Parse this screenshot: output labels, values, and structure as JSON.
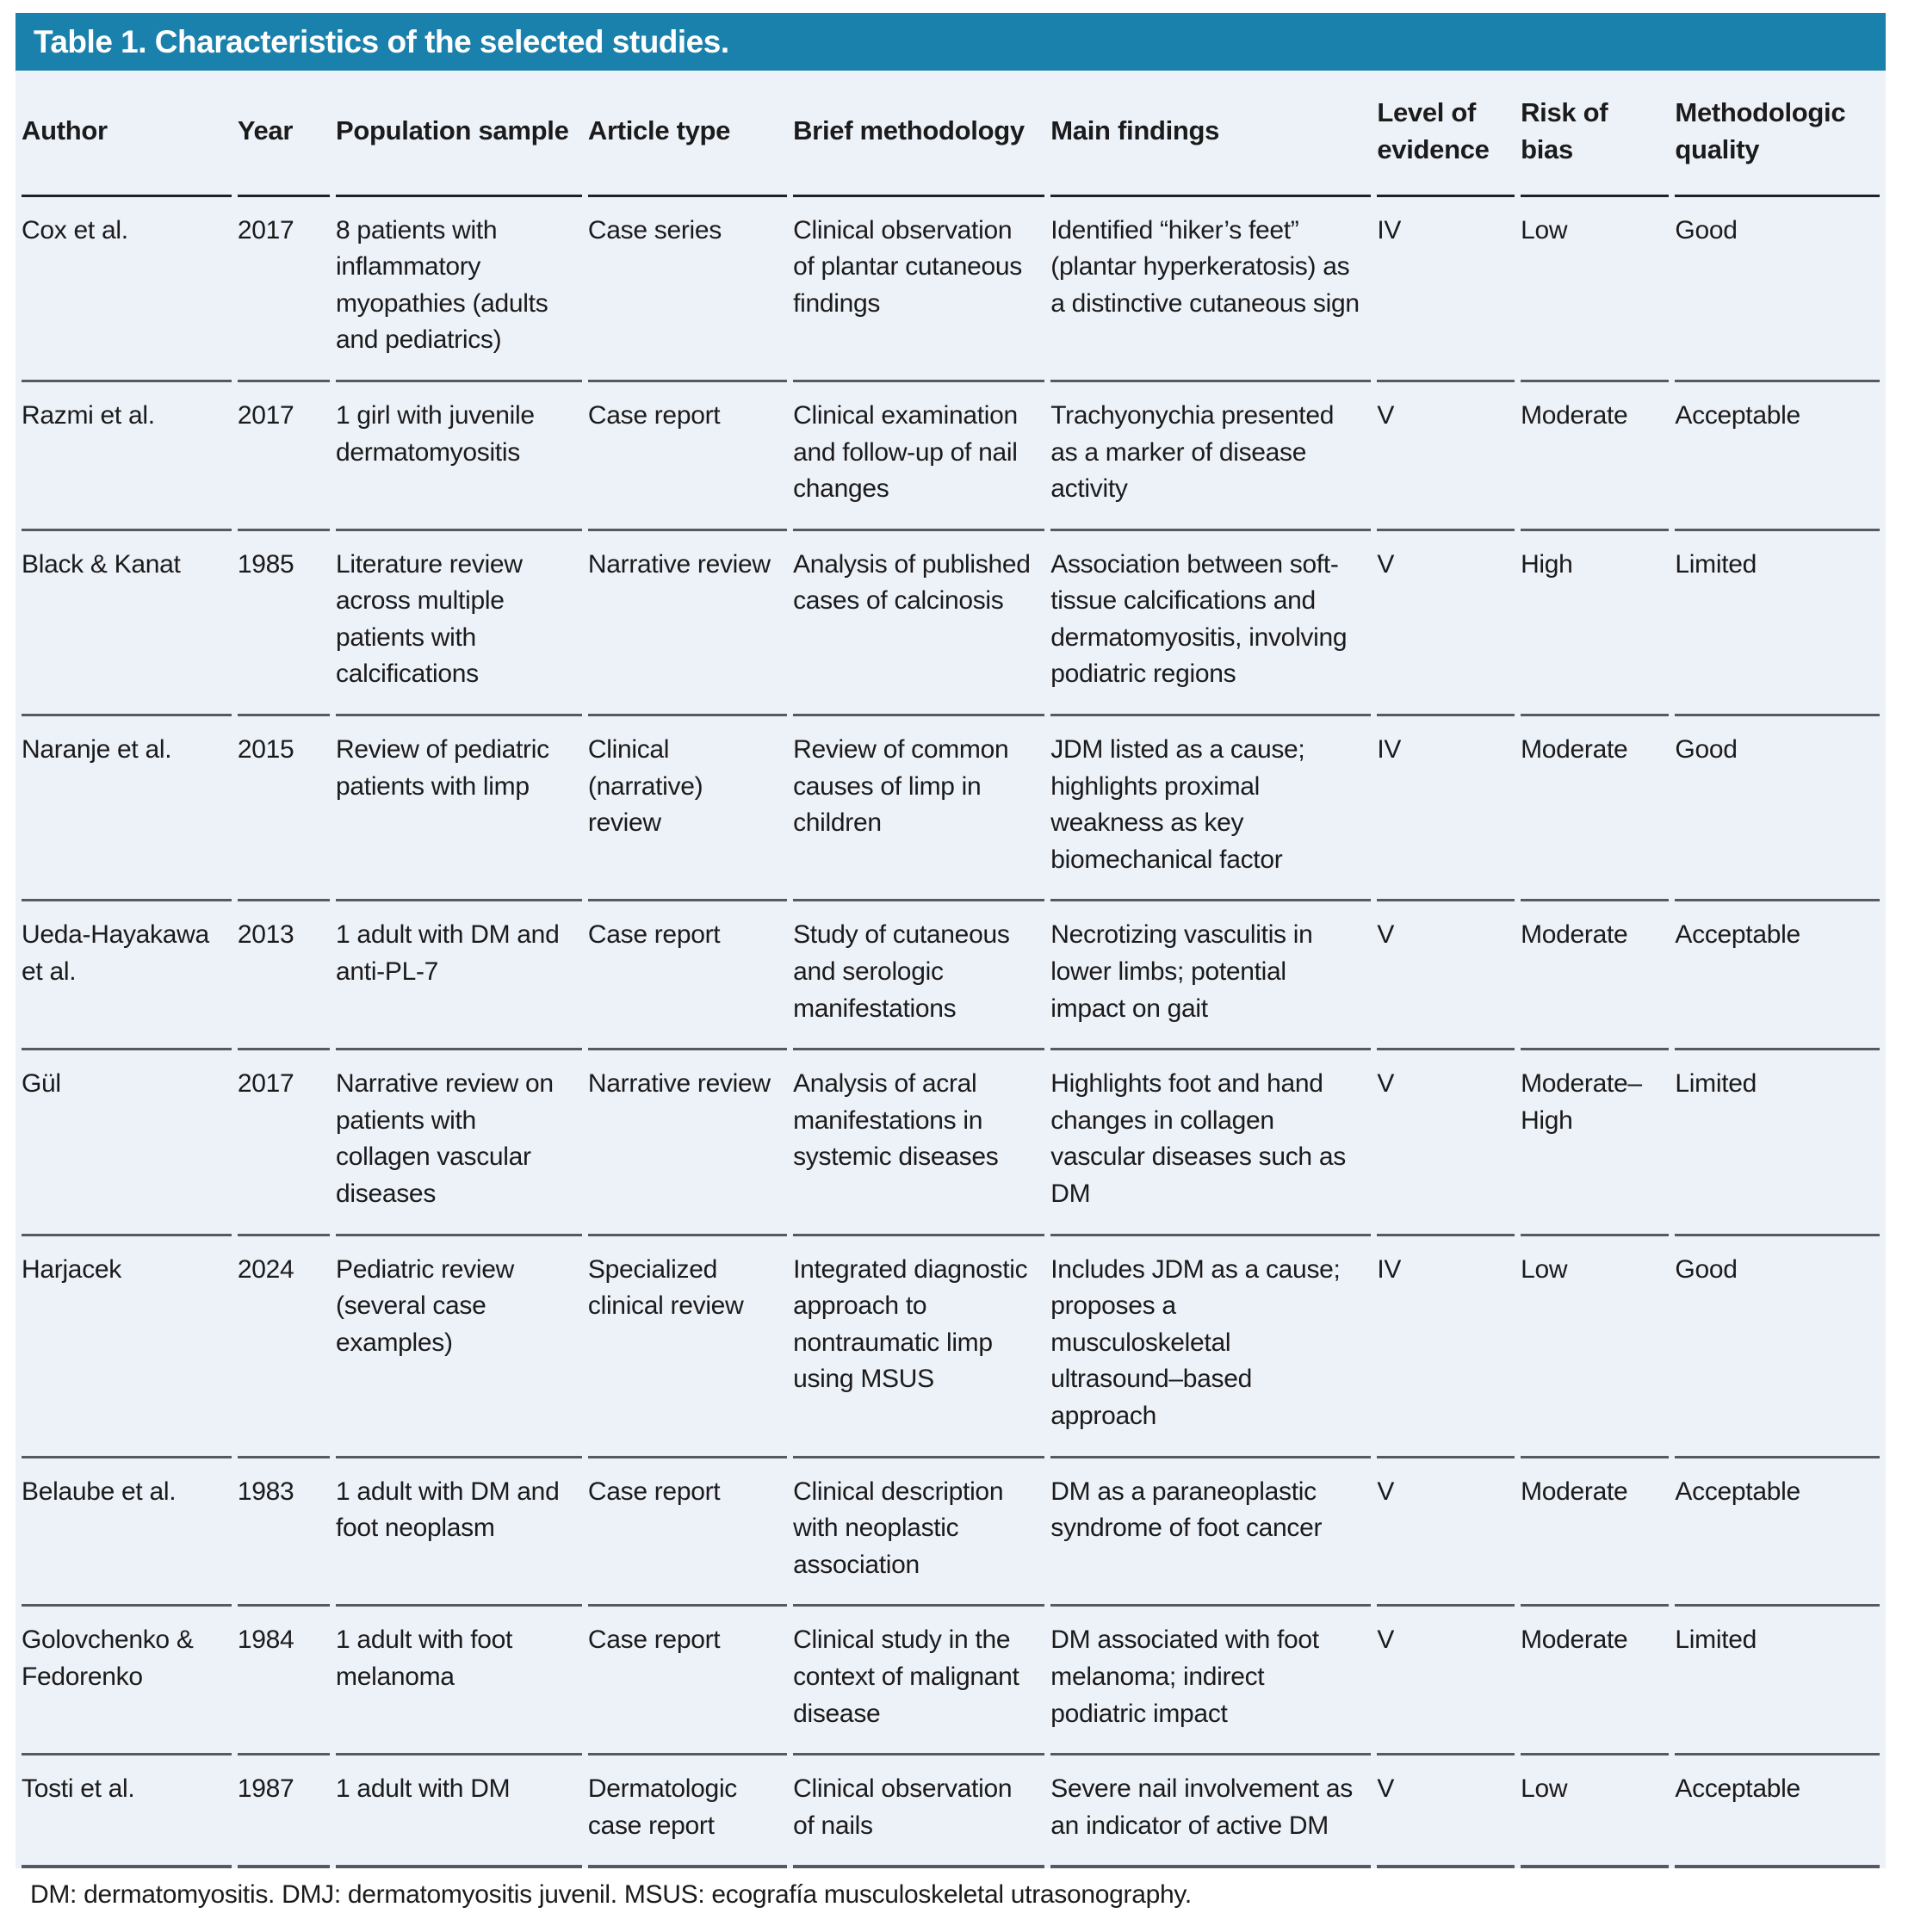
{
  "title": "Table 1. Characteristics of the selected studies.",
  "colors": {
    "accent": "#1a81ad",
    "body_bg": "#edf1f8",
    "rule": "#565a60"
  },
  "columns": [
    {
      "key": "author",
      "label": "Author"
    },
    {
      "key": "year",
      "label": "Year"
    },
    {
      "key": "population",
      "label": "Population sample"
    },
    {
      "key": "article_type",
      "label": "Article type"
    },
    {
      "key": "methodology",
      "label": "Brief methodology"
    },
    {
      "key": "findings",
      "label": "Main findings"
    },
    {
      "key": "evidence",
      "label": "Level of evidence"
    },
    {
      "key": "bias",
      "label": "Risk of bias"
    },
    {
      "key": "quality",
      "label": "Methodologic quality"
    }
  ],
  "rows": [
    {
      "author": "Cox et al.",
      "year": "2017",
      "population": "8 patients with inflammatory myopathies (adults and pediatrics)",
      "article_type": "Case series",
      "methodology": "Clinical observation of plantar cutaneous findings",
      "findings": "Identified “hiker’s feet” (plantar hyperkeratosis) as a distinctive cutaneous sign",
      "evidence": "IV",
      "bias": "Low",
      "quality": "Good"
    },
    {
      "author": "Razmi et al.",
      "year": "2017",
      "population": "1 girl with juvenile dermatomyositis",
      "article_type": "Case report",
      "methodology": "Clinical examination and follow-up of nail changes",
      "findings": "Trachyonychia presented as a marker of disease activity",
      "evidence": "V",
      "bias": "Moderate",
      "quality": "Acceptable"
    },
    {
      "author": "Black & Kanat",
      "year": "1985",
      "population": "Literature review across multiple patients with calcifications",
      "article_type": "Narrative review",
      "methodology": "Analysis of published cases of calcinosis",
      "findings": "Association between soft-tissue calcifications and dermatomyositis, involving podiatric regions",
      "evidence": "V",
      "bias": "High",
      "quality": "Limited"
    },
    {
      "author": "Naranje et al.",
      "year": "2015",
      "population": "Review of pediatric patients with limp",
      "article_type": "Clinical (narrative) review",
      "methodology": "Review of common causes of limp in children",
      "findings": "JDM listed as a cause; highlights proximal weakness as key biomechanical factor",
      "evidence": "IV",
      "bias": "Moderate",
      "quality": "Good"
    },
    {
      "author": "Ueda-Hayakawa et al.",
      "year": "2013",
      "population": "1 adult with DM and anti-PL-7",
      "article_type": "Case report",
      "methodology": "Study of cutaneous and serologic manifestations",
      "findings": "Necrotizing vasculitis in lower limbs; potential impact on gait",
      "evidence": "V",
      "bias": "Moderate",
      "quality": "Acceptable"
    },
    {
      "author": "Gül",
      "year": "2017",
      "population": "Narrative review on patients with collagen vascular diseases",
      "article_type": "Narrative review",
      "methodology": "Analysis of acral manifestations in systemic diseases",
      "findings": "Highlights foot and hand changes in collagen vascular diseases such as DM",
      "evidence": "V",
      "bias": "Moderate–High",
      "quality": "Limited"
    },
    {
      "author": "Harjacek",
      "year": "2024",
      "population": "Pediatric review (several case examples)",
      "article_type": "Specialized clinical review",
      "methodology": "Integrated diagnostic approach to nontraumatic limp using MSUS",
      "findings": "Includes JDM as a cause; proposes a musculoskeletal ultrasound–based approach",
      "evidence": "IV",
      "bias": "Low",
      "quality": "Good"
    },
    {
      "author": "Belaube et al.",
      "year": "1983",
      "population": "1 adult with DM and foot neoplasm",
      "article_type": "Case report",
      "methodology": "Clinical description with neoplastic association",
      "findings": "DM as a paraneoplastic syndrome of foot cancer",
      "evidence": "V",
      "bias": "Moderate",
      "quality": "Acceptable"
    },
    {
      "author": "Golovchenko & Fedorenko",
      "year": "1984",
      "population": "1 adult with foot melanoma",
      "article_type": "Case report",
      "methodology": "Clinical study in the context of malignant disease",
      "findings": "DM associated with foot melanoma; indirect podiatric impact",
      "evidence": "V",
      "bias": "Moderate",
      "quality": "Limited"
    },
    {
      "author": "Tosti et al.",
      "year": "1987",
      "population": "1 adult with DM",
      "article_type": "Dermatologic case report",
      "methodology": "Clinical observation of nails",
      "findings": "Severe nail involvement as an indicator of active DM",
      "evidence": "V",
      "bias": "Low",
      "quality": "Acceptable"
    }
  ],
  "footnote": "DM: dermatomyositis. DMJ: dermatomyositis juvenil. MSUS: ecografía musculoskeletal utrasonography."
}
